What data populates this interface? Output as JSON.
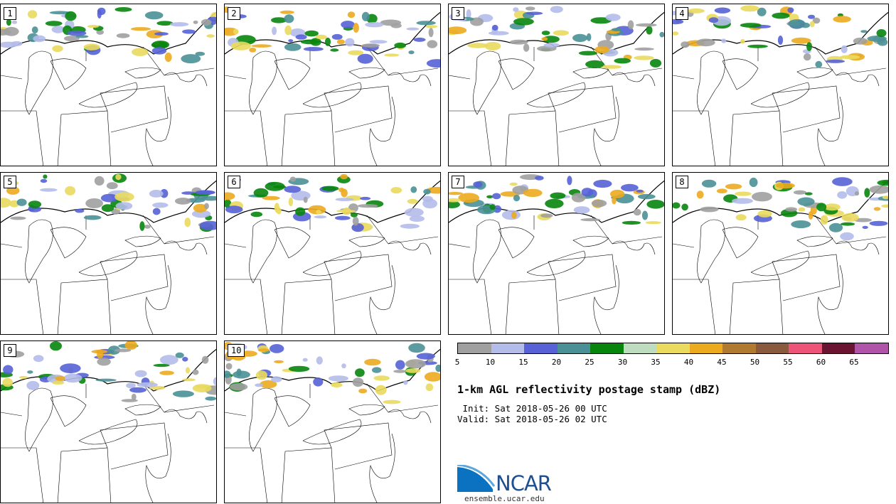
{
  "panels": [
    {
      "label": "1"
    },
    {
      "label": "2"
    },
    {
      "label": "3"
    },
    {
      "label": "4"
    },
    {
      "label": "5"
    },
    {
      "label": "6"
    },
    {
      "label": "7"
    },
    {
      "label": "8"
    },
    {
      "label": "9"
    },
    {
      "label": "10"
    }
  ],
  "colorbar": {
    "colors": [
      "#a0a0a0",
      "#b4bcea",
      "#5662d6",
      "#4a9096",
      "#08850d",
      "#bedcbe",
      "#eada5e",
      "#ecaa1e",
      "#b07a30",
      "#8a5a3e",
      "#ee5478",
      "#6a1432",
      "#b054aa"
    ],
    "ticks": [
      "5",
      "10",
      "15",
      "20",
      "25",
      "30",
      "35",
      "40",
      "45",
      "50",
      "55",
      "60",
      "65"
    ]
  },
  "title": "1-km AGL reflectivity postage stamp (dBZ)",
  "init_line": " Init: Sat 2018-05-26 00 UTC",
  "valid_line": "Valid: Sat 2018-05-26 02 UTC",
  "logo": {
    "text": "NCAR",
    "url": "ensemble.ucar.edu",
    "color": "#1d4f91"
  }
}
